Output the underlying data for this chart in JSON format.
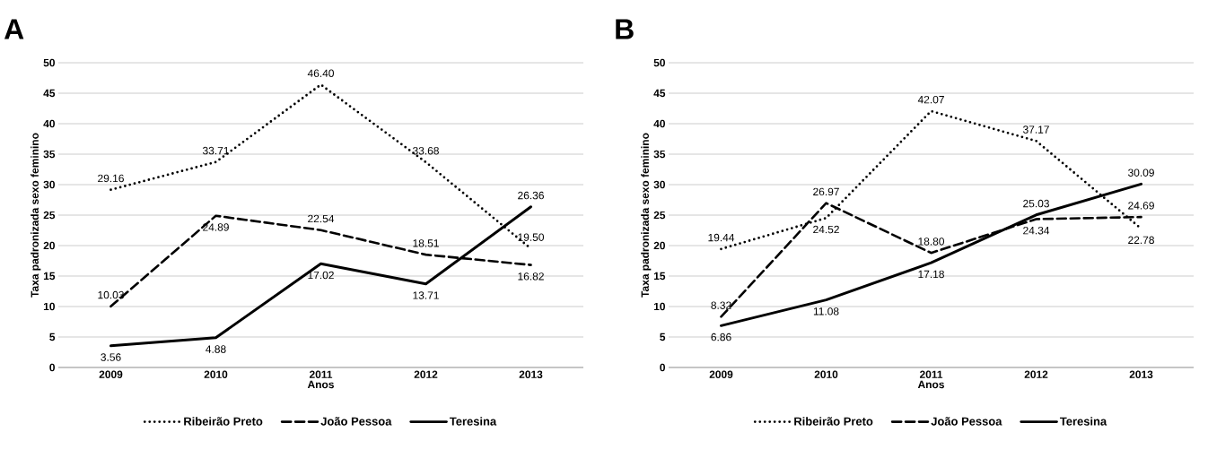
{
  "chart_data": [
    {
      "type": "line",
      "title": "A",
      "xlabel": "Anos",
      "ylabel": "Taxa padronizada sexo feminino",
      "categories": [
        "2009",
        "2010",
        "2011",
        "2012",
        "2013"
      ],
      "ylim": [
        0,
        50
      ],
      "yticks": [
        0,
        5,
        10,
        15,
        20,
        25,
        30,
        35,
        40,
        45,
        50
      ],
      "grid": "y",
      "legend": "bottom",
      "series": [
        {
          "name": "Ribeirão Preto",
          "color": "#000000",
          "line_style": "dotted",
          "values": [
            29.16,
            33.71,
            46.4,
            33.68,
            19.5
          ],
          "value_labels": [
            "29.16",
            "33.71",
            "46.40",
            "33.68",
            "19.50"
          ]
        },
        {
          "name": "João Pessoa",
          "color": "#000000",
          "line_style": "dashed",
          "values": [
            10.03,
            24.89,
            22.54,
            18.51,
            16.82
          ],
          "value_labels": [
            "10.03",
            "24.89",
            "22.54",
            "18.51",
            "16.82"
          ]
        },
        {
          "name": "Teresina",
          "color": "#000000",
          "line_style": "solid",
          "values": [
            3.56,
            4.88,
            17.02,
            13.71,
            26.36
          ],
          "value_labels": [
            "3.56",
            "4.88",
            "17.02",
            "13.71",
            "26.36"
          ]
        }
      ]
    },
    {
      "type": "line",
      "title": "B",
      "xlabel": "Anos",
      "ylabel": "Taxa padronizada sexo feminino",
      "categories": [
        "2009",
        "2010",
        "2011",
        "2012",
        "2013"
      ],
      "ylim": [
        0,
        50
      ],
      "yticks": [
        0,
        5,
        10,
        15,
        20,
        25,
        30,
        35,
        40,
        45,
        50
      ],
      "grid": "y",
      "legend": "bottom",
      "series": [
        {
          "name": "Ribeirão Preto",
          "color": "#000000",
          "line_style": "dotted",
          "values": [
            19.44,
            24.52,
            42.07,
            37.17,
            22.78
          ],
          "value_labels": [
            "19.44",
            "24.52",
            "42.07",
            "37.17",
            "22.78"
          ]
        },
        {
          "name": "João Pessoa",
          "color": "#000000",
          "line_style": "dashed",
          "values": [
            8.32,
            26.97,
            18.8,
            24.34,
            24.69
          ],
          "value_labels": [
            "8.32",
            "26.97",
            "18.80",
            "24.34",
            "24.69"
          ]
        },
        {
          "name": "Teresina",
          "color": "#000000",
          "line_style": "solid",
          "values": [
            6.86,
            11.08,
            17.18,
            25.03,
            30.09
          ],
          "value_labels": [
            "6.86",
            "11.08",
            "17.18",
            "25.03",
            "30.09"
          ]
        }
      ]
    }
  ]
}
